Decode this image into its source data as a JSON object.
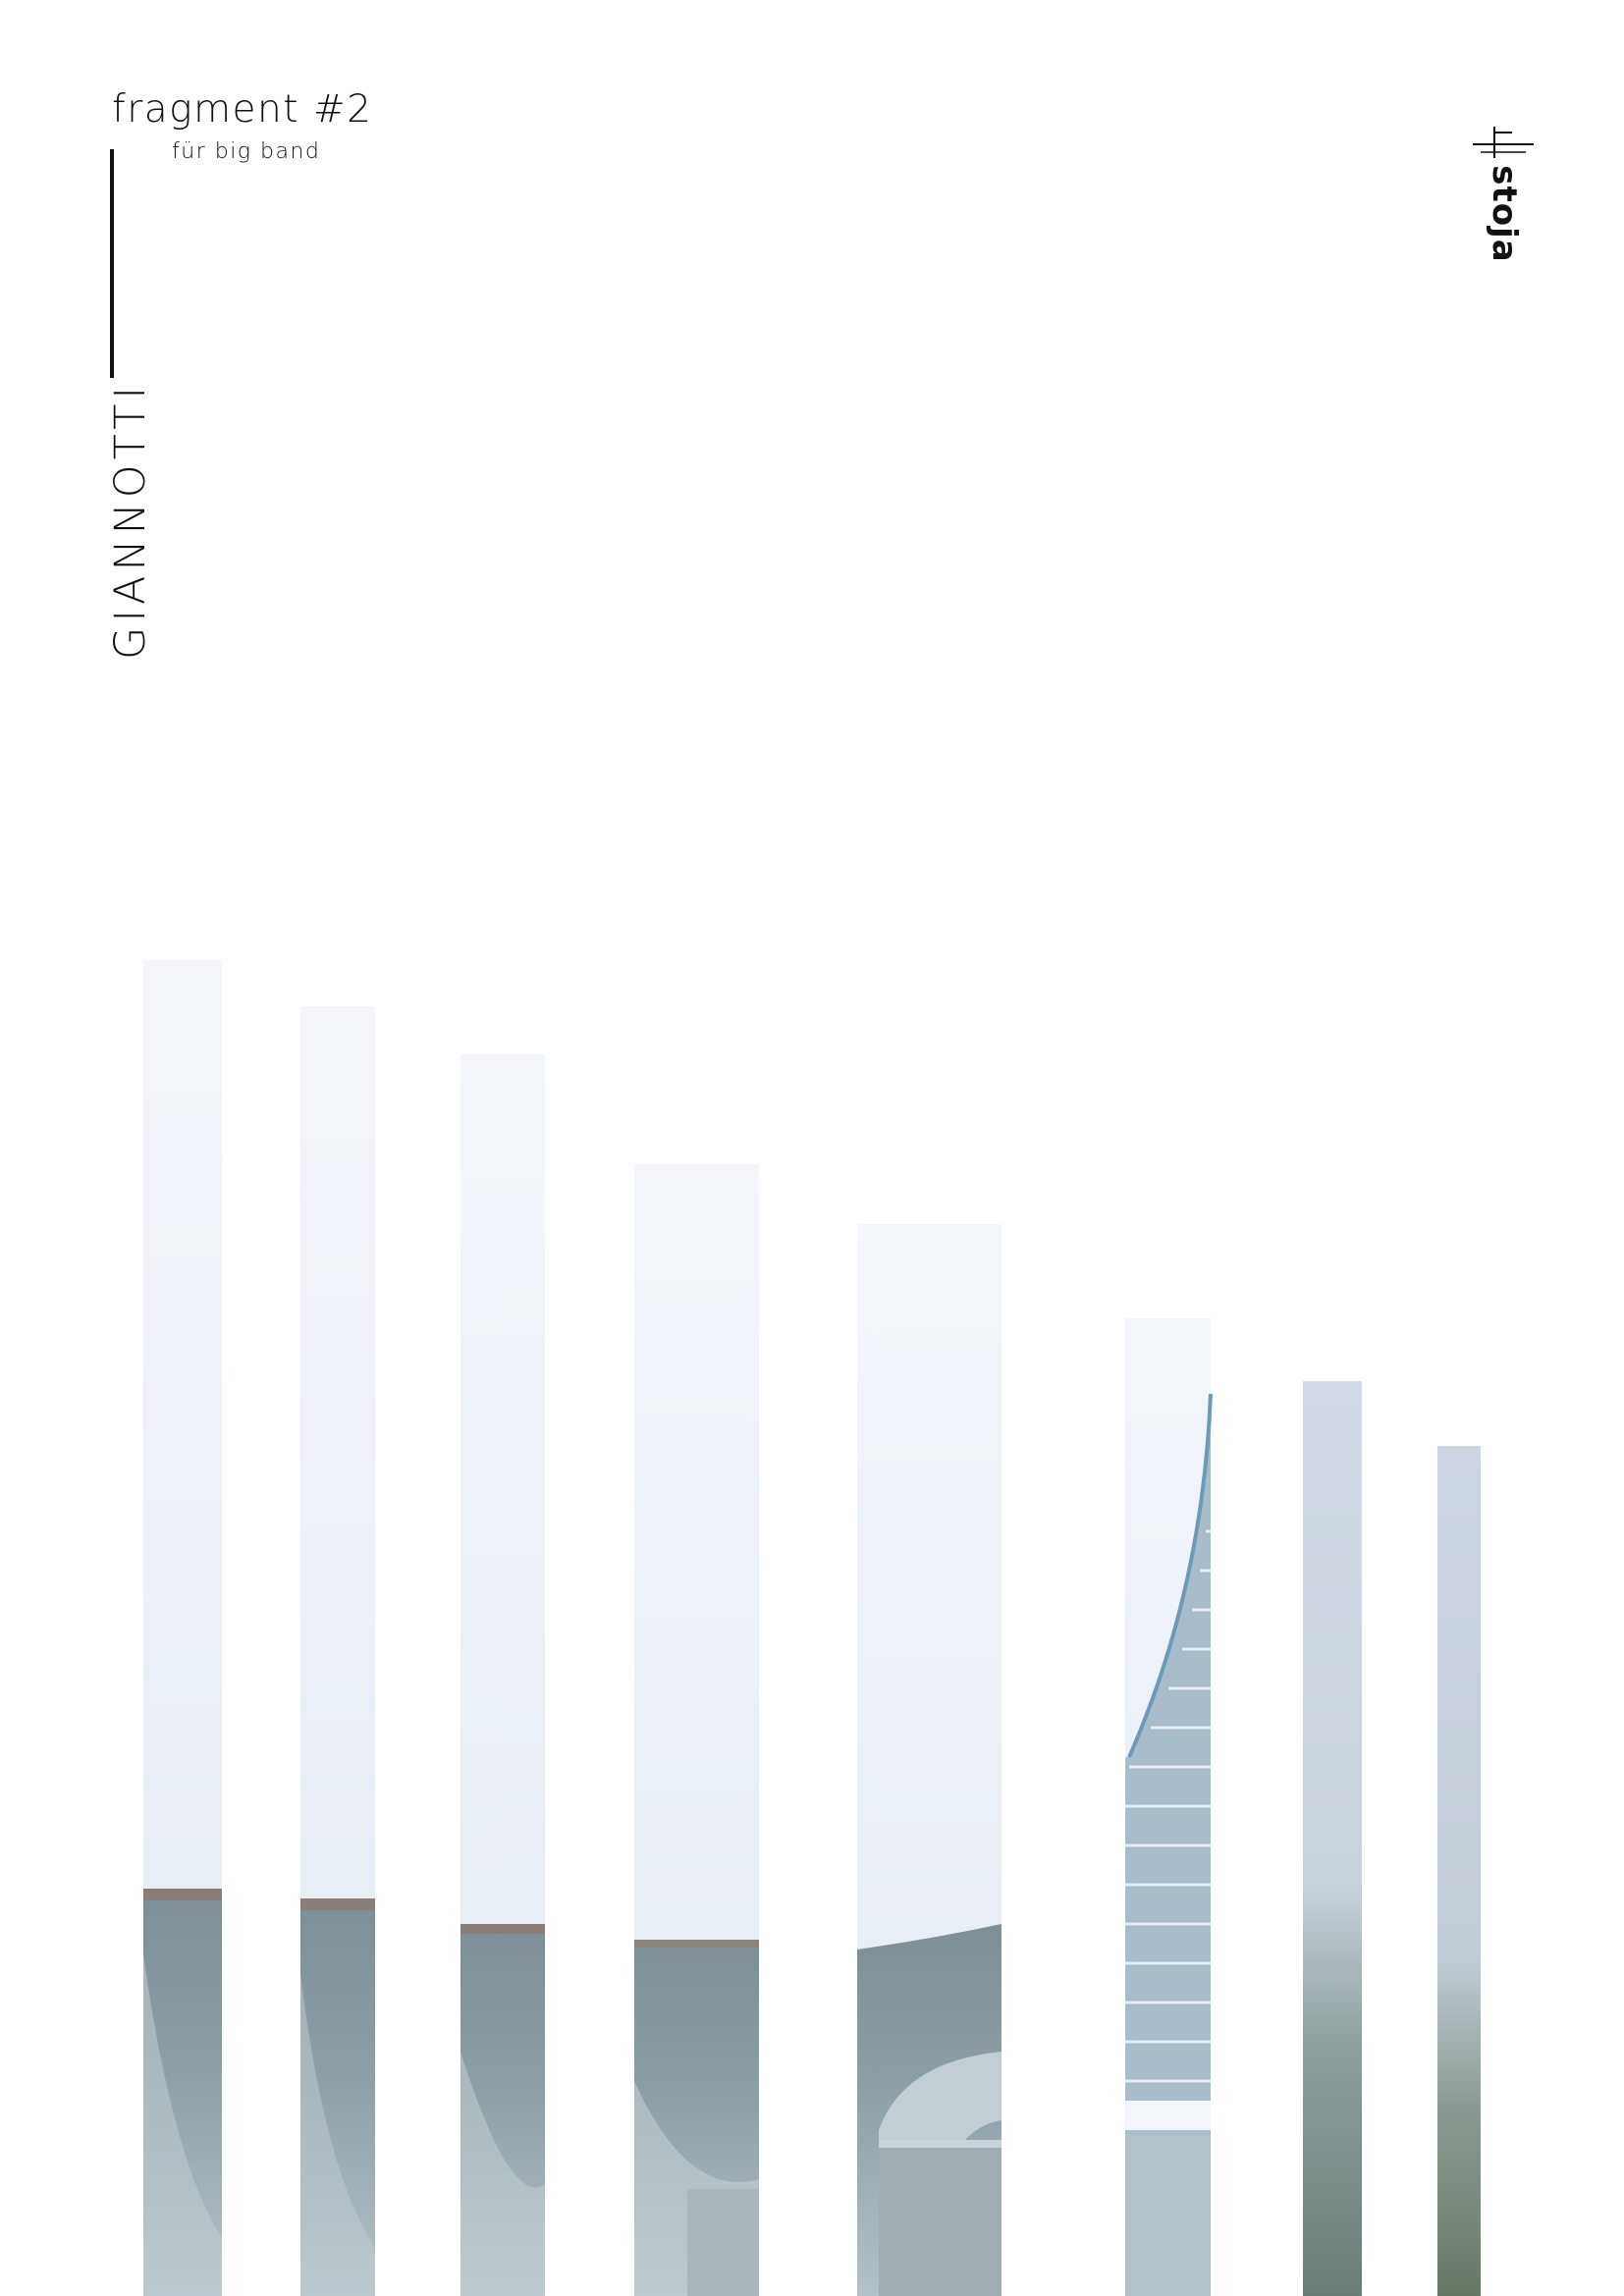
{
  "document": {
    "title": "fragment #2",
    "subtitle": "für big band",
    "composer": "GIANNOTTI",
    "publisher_logo_text": "stoja"
  },
  "colors": {
    "text": "#111111",
    "sky_top": "#f1f5fb",
    "sky_low": "#e4ebf4",
    "concrete_light": "#a9b8c0",
    "concrete_dark": "#6e7e86",
    "edge": "#8c7d78",
    "stair_rail": "#6f9ab5"
  },
  "image_description_icon": "concrete-stadium-stairs-photo-strips"
}
